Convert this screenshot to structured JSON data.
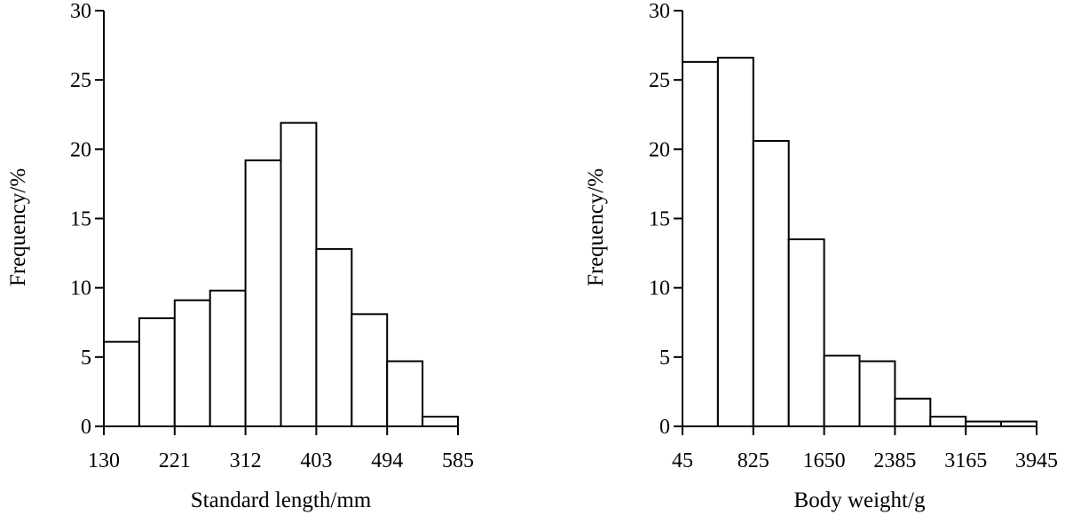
{
  "chart_data": [
    {
      "id": "length",
      "type": "bar",
      "xlabel": "Standard length/mm",
      "ylabel": "Frequency/%",
      "ylim": [
        0,
        30
      ],
      "yticks": [
        "0",
        "5",
        "10",
        "15",
        "20",
        "25",
        "30"
      ],
      "xtick_labels": [
        "130",
        "221",
        "312",
        "403",
        "494",
        "585"
      ],
      "bin_count": 10,
      "values": [
        6.1,
        7.8,
        9.1,
        9.8,
        19.2,
        21.9,
        12.8,
        8.1,
        4.7,
        0.7
      ]
    },
    {
      "id": "weight",
      "type": "bar",
      "xlabel": "Body weight/g",
      "ylabel": "Frequency/%",
      "ylim": [
        0,
        30
      ],
      "yticks": [
        "0",
        "5",
        "10",
        "15",
        "20",
        "25",
        "30"
      ],
      "xtick_labels": [
        "45",
        "825",
        "1650",
        "2385",
        "3165",
        "3945"
      ],
      "bin_count": 10,
      "values": [
        26.3,
        26.6,
        20.6,
        13.5,
        5.1,
        4.7,
        2.0,
        0.7,
        0.35,
        0.35
      ]
    }
  ]
}
